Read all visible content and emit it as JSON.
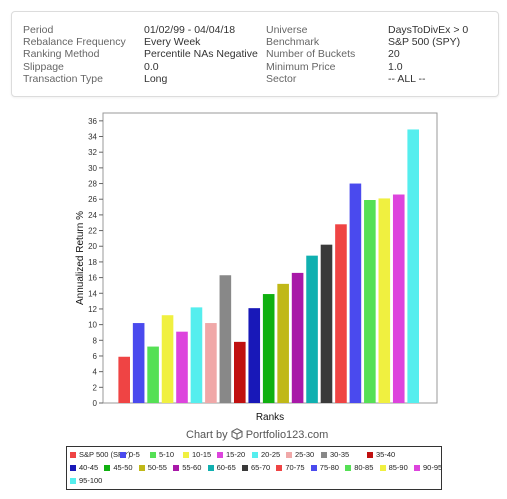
{
  "params": {
    "left": [
      {
        "label": "Period",
        "value": "01/02/99 - 04/04/18"
      },
      {
        "label": "Rebalance Frequency",
        "value": "Every Week"
      },
      {
        "label": "Ranking Method",
        "value": "Percentile NAs Negative"
      },
      {
        "label": "Slippage",
        "value": "0.0"
      },
      {
        "label": "Transaction Type",
        "value": "Long"
      }
    ],
    "right": [
      {
        "label": "Universe",
        "value": "DaysToDivEx > 0"
      },
      {
        "label": "Benchmark",
        "value": "S&P 500 (SPY)"
      },
      {
        "label": "Number of Buckets",
        "value": "20"
      },
      {
        "label": "Minimum Price",
        "value": "1.0"
      },
      {
        "label": "Sector",
        "value": "-- ALL --"
      }
    ]
  },
  "credit": {
    "prefix": "Chart by",
    "brand": "Portfolio123.com"
  },
  "chart_data": {
    "type": "bar",
    "xlabel": "Ranks",
    "ylabel": "Annualized Return %",
    "ylim": [
      0,
      37
    ],
    "yticks": [
      0,
      2,
      4,
      6,
      8,
      10,
      12,
      14,
      16,
      18,
      20,
      22,
      24,
      26,
      28,
      30,
      32,
      34,
      36
    ],
    "grid": false,
    "legend_position": "bottom",
    "categories": [
      "S&P 500 (SPY)",
      "0-5",
      "5-10",
      "10-15",
      "15-20",
      "20-25",
      "25-30",
      "30-35",
      "35-40",
      "40-45",
      "45-50",
      "50-55",
      "55-60",
      "60-65",
      "65-70",
      "70-75",
      "75-80",
      "80-85",
      "85-90",
      "90-95",
      "95-100"
    ],
    "values": [
      5.9,
      10.2,
      7.2,
      11.2,
      9.1,
      12.2,
      10.2,
      16.3,
      7.8,
      12.1,
      13.9,
      15.2,
      16.6,
      18.8,
      20.2,
      22.8,
      28.0,
      25.9,
      26.1,
      26.6,
      34.9
    ],
    "colors": [
      "#ef4444",
      "#4a4aee",
      "#55e055",
      "#f0f040",
      "#dd44dd",
      "#55eeee",
      "#f0a8a8",
      "#888888",
      "#c01010",
      "#1818b8",
      "#10b010",
      "#c0b818",
      "#a818a8",
      "#10b0b0",
      "#3a3a3a",
      "#ef4444",
      "#4a4aee",
      "#55e055",
      "#f0f040",
      "#dd44dd",
      "#55eeee"
    ]
  }
}
